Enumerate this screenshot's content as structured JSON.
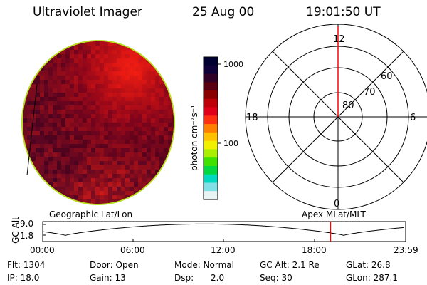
{
  "header": {
    "instrument": "Ultraviolet Imager",
    "date": "25 Aug 00",
    "time": "19:01:50 UT"
  },
  "colorbar": {
    "unit_label": "photon cm⁻²s⁻¹",
    "ticks": [
      {
        "value": 1000,
        "label": "1000"
      },
      {
        "value": 100,
        "label": "100"
      }
    ],
    "scale": "log",
    "colors": [
      "#000030",
      "#10003a",
      "#300028",
      "#580010",
      "#8a0000",
      "#c00008",
      "#e00018",
      "#ff3010",
      "#ff8000",
      "#ffc000",
      "#f0f000",
      "#a8f000",
      "#40e000",
      "#00d840",
      "#00d8c0",
      "#80e0e8",
      "#e8f4f4"
    ]
  },
  "polar_grid": {
    "mlt_labels": {
      "top": "12",
      "bottom": "0",
      "left": "18",
      "right": "6"
    },
    "lat_labels": [
      "80",
      "70",
      "60"
    ]
  },
  "timeline": {
    "left_title": "Geographic Lat/Lon",
    "right_title": "Apex MLat/MLT",
    "axis_label": "GC Alt",
    "y_ticks": [
      "9.0",
      "1.8"
    ],
    "y_range": [
      1.8,
      9.0
    ],
    "time_ticks": [
      "00:00",
      "06:00",
      "12:00",
      "18:00",
      "23:59"
    ],
    "current_time_hours": 19.03,
    "marker_color": "#ff0000"
  },
  "info": {
    "flt": "Flt: 1304",
    "ip": "IP: 18.0",
    "door": "Door: Open",
    "gain": "Gain: 13",
    "mode": "Mode: Normal",
    "dsp_label": "Dsp:",
    "dsp_value": "2.0",
    "gc_alt": "GC Alt: 2.1 Re",
    "seq": "Seq: 30",
    "glat": "GLat:  26.8",
    "glon": "GLon: 287.1"
  }
}
